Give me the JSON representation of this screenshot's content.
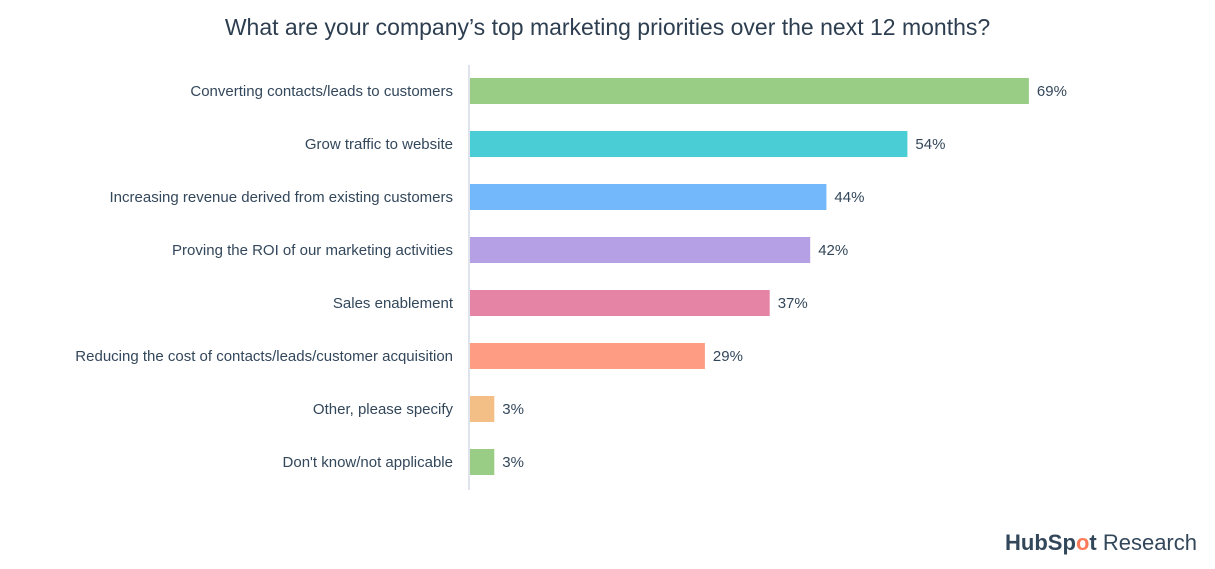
{
  "chart_data": {
    "type": "bar",
    "orientation": "horizontal",
    "title": "What are your company’s top marketing priorities over the next 12 months?",
    "categories": [
      "Converting contacts/leads to customers",
      "Grow traffic to website",
      "Increasing revenue derived from existing customers",
      "Proving the ROI of our marketing activities",
      "Sales enablement",
      "Reducing the cost of contacts/leads/customer acquisition",
      "Other, please specify",
      "Don't know/not applicable"
    ],
    "values": [
      69,
      54,
      44,
      42,
      37,
      29,
      3,
      3
    ],
    "value_labels": [
      "69%",
      "54%",
      "44%",
      "42%",
      "37%",
      "29%",
      "3%",
      "3%"
    ],
    "colors": [
      "#99cc85",
      "#4acdd4",
      "#73b8fb",
      "#b59fe5",
      "#e684a6",
      "#fd9c82",
      "#f3bf86",
      "#99cc85"
    ],
    "unit": "%",
    "xlim": [
      0,
      100
    ],
    "grid": false,
    "legend": "none"
  },
  "logo": {
    "text": "HubSpot Research",
    "brand_start": "HubSp",
    "brand_o": "o",
    "brand_end": "t",
    "suffix": " Research",
    "accent": "#ff7a59"
  }
}
